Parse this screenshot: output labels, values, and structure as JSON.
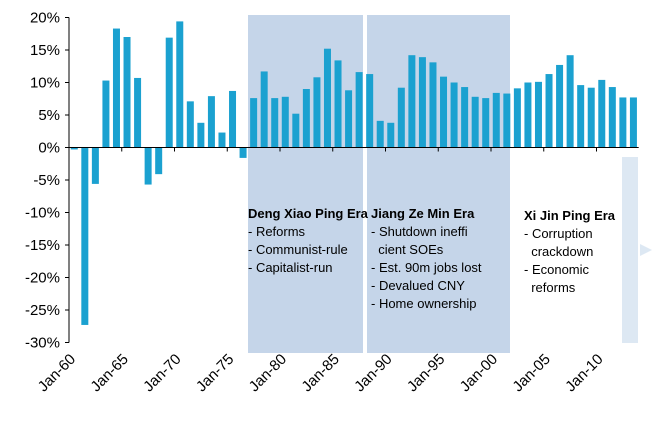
{
  "chart_data": {
    "type": "bar",
    "x_tick_labels": [
      "Jan-60",
      "Jan-65",
      "Jan-70",
      "Jan-75",
      "Jan-80",
      "Jan-85",
      "Jan-90",
      "Jan-95",
      "Jan-00",
      "Jan-05",
      "Jan-10"
    ],
    "y_tick_labels": [
      "20%",
      "15%",
      "10%",
      "5%",
      "0%",
      "-5%",
      "-10%",
      "-15%",
      "-20%",
      "-25%",
      "-30%"
    ],
    "ylim": [
      -30,
      20
    ],
    "bar_color": "#1ba1d0",
    "x_start_year": 1960,
    "values": [
      -0.3,
      -27.3,
      -5.6,
      10.3,
      18.3,
      17.0,
      10.7,
      -5.7,
      -4.1,
      16.9,
      19.4,
      7.1,
      3.8,
      7.9,
      2.3,
      8.7,
      -1.6,
      7.6,
      11.7,
      7.6,
      7.8,
      5.2,
      9.0,
      10.8,
      15.2,
      13.4,
      8.8,
      11.6,
      11.3,
      4.1,
      3.8,
      9.2,
      14.2,
      13.9,
      13.1,
      10.9,
      10.0,
      9.3,
      7.8,
      7.6,
      8.4,
      8.3,
      9.1,
      10.0,
      10.1,
      11.3,
      12.7,
      14.2,
      9.6,
      9.2,
      10.4,
      9.3,
      7.7,
      7.7
    ],
    "shade_color": "#c5d5e9",
    "eras": [
      {
        "title": "Deng Xiao Ping Era",
        "items": [
          "- Reforms",
          "- Communist-rule",
          "- Capitalist-run"
        ]
      },
      {
        "title": "Jiang Ze Min Era",
        "items": [
          "- Shutdown ineffi",
          "  cient SOEs",
          "- Est. 90m jobs lost",
          "- Devalued CNY",
          "- Home ownership"
        ]
      },
      {
        "title": "Xi Jin Ping Era",
        "items": [
          "- Corruption",
          "  crackdown",
          "- Economic",
          "  reforms"
        ]
      }
    ],
    "arrow_color": "#dde8f3",
    "grid": false
  }
}
